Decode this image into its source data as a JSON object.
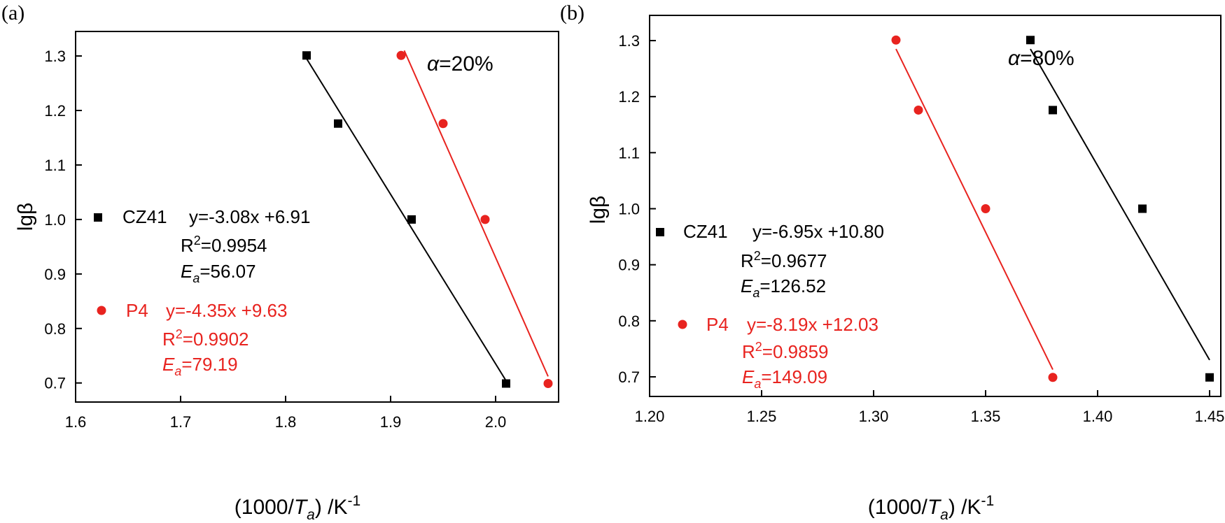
{
  "colors": {
    "CZ41": "#000000",
    "P4": "#e8231f"
  },
  "chart_data": [
    {
      "type": "scatter",
      "panel_label": "(a)",
      "annotation": {
        "symbol": "α",
        "text": "=20%"
      },
      "xlabel": {
        "pre": "(1000/",
        "var": "T",
        "sub": "a",
        "post": ") /K",
        "sup": "-1"
      },
      "ylabel": "lgβ",
      "xlim": [
        1.6,
        2.06
      ],
      "ylim": [
        0.665,
        1.345
      ],
      "xticks": [
        "1.6",
        "1.7",
        "1.8",
        "1.9",
        "2.0"
      ],
      "yticks": [
        "0.7",
        "0.8",
        "0.9",
        "1.0",
        "1.1",
        "1.2",
        "1.3"
      ],
      "series": [
        {
          "name": "CZ41",
          "marker": "square",
          "color": "#000000",
          "x": [
            1.82,
            1.85,
            1.92,
            2.01
          ],
          "y": [
            1.301,
            1.176,
            1.0,
            0.699
          ],
          "fit": {
            "x": [
              1.82,
              2.01
            ],
            "y": [
              1.295,
              0.704
            ]
          },
          "equation": "y=-3.08x +6.91",
          "r2_label": "R",
          "r2_sup": "2",
          "r2_value": "=0.9954",
          "ea_label": "E",
          "ea_sub": "a",
          "ea_value": "=56.07"
        },
        {
          "name": "P4",
          "marker": "circle",
          "color": "#e8231f",
          "x": [
            1.91,
            1.95,
            1.99,
            2.05
          ],
          "y": [
            1.301,
            1.176,
            1.0,
            0.699
          ],
          "fit": {
            "x": [
              1.913,
              2.05
            ],
            "y": [
              1.31,
              0.712
            ]
          },
          "equation": "y=-4.35x +9.63",
          "r2_label": "R",
          "r2_sup": "2",
          "r2_value": "=0.9902",
          "ea_label": "E",
          "ea_sub": "a",
          "ea_value": "=79.19"
        }
      ]
    },
    {
      "type": "scatter",
      "panel_label": "(b)",
      "annotation": {
        "symbol": "α",
        "text": "=80%"
      },
      "xlabel": {
        "pre": "(1000/",
        "var": "T",
        "sub": "a",
        "post": ") /K",
        "sup": "-1"
      },
      "ylabel": "lgβ",
      "xlim": [
        1.2,
        1.455
      ],
      "ylim": [
        0.665,
        1.345
      ],
      "xticks": [
        "1.20",
        "1.25",
        "1.30",
        "1.35",
        "1.40",
        "1.45"
      ],
      "yticks": [
        "0.7",
        "0.8",
        "0.9",
        "1.0",
        "1.1",
        "1.2",
        "1.3"
      ],
      "series": [
        {
          "name": "CZ41",
          "marker": "square",
          "color": "#000000",
          "x": [
            1.37,
            1.38,
            1.42,
            1.45
          ],
          "y": [
            1.301,
            1.176,
            1.0,
            0.699
          ],
          "fit": {
            "x": [
              1.37,
              1.45
            ],
            "y": [
              1.285,
              0.73
            ]
          },
          "equation": "y=-6.95x +10.80",
          "r2_label": "R",
          "r2_sup": "2",
          "r2_value": "=0.9677",
          "ea_label": "E",
          "ea_sub": "a",
          "ea_value": "=126.52"
        },
        {
          "name": "P4",
          "marker": "circle",
          "color": "#e8231f",
          "x": [
            1.31,
            1.32,
            1.35,
            1.38
          ],
          "y": [
            1.301,
            1.176,
            1.0,
            0.699
          ],
          "fit": {
            "x": [
              1.31,
              1.38
            ],
            "y": [
              1.285,
              0.713
            ]
          },
          "equation": "y=-8.19x +12.03",
          "r2_label": "R",
          "r2_sup": "2",
          "r2_value": "=0.9859",
          "ea_label": "E",
          "ea_sub": "a",
          "ea_value": "=149.09"
        }
      ]
    }
  ]
}
